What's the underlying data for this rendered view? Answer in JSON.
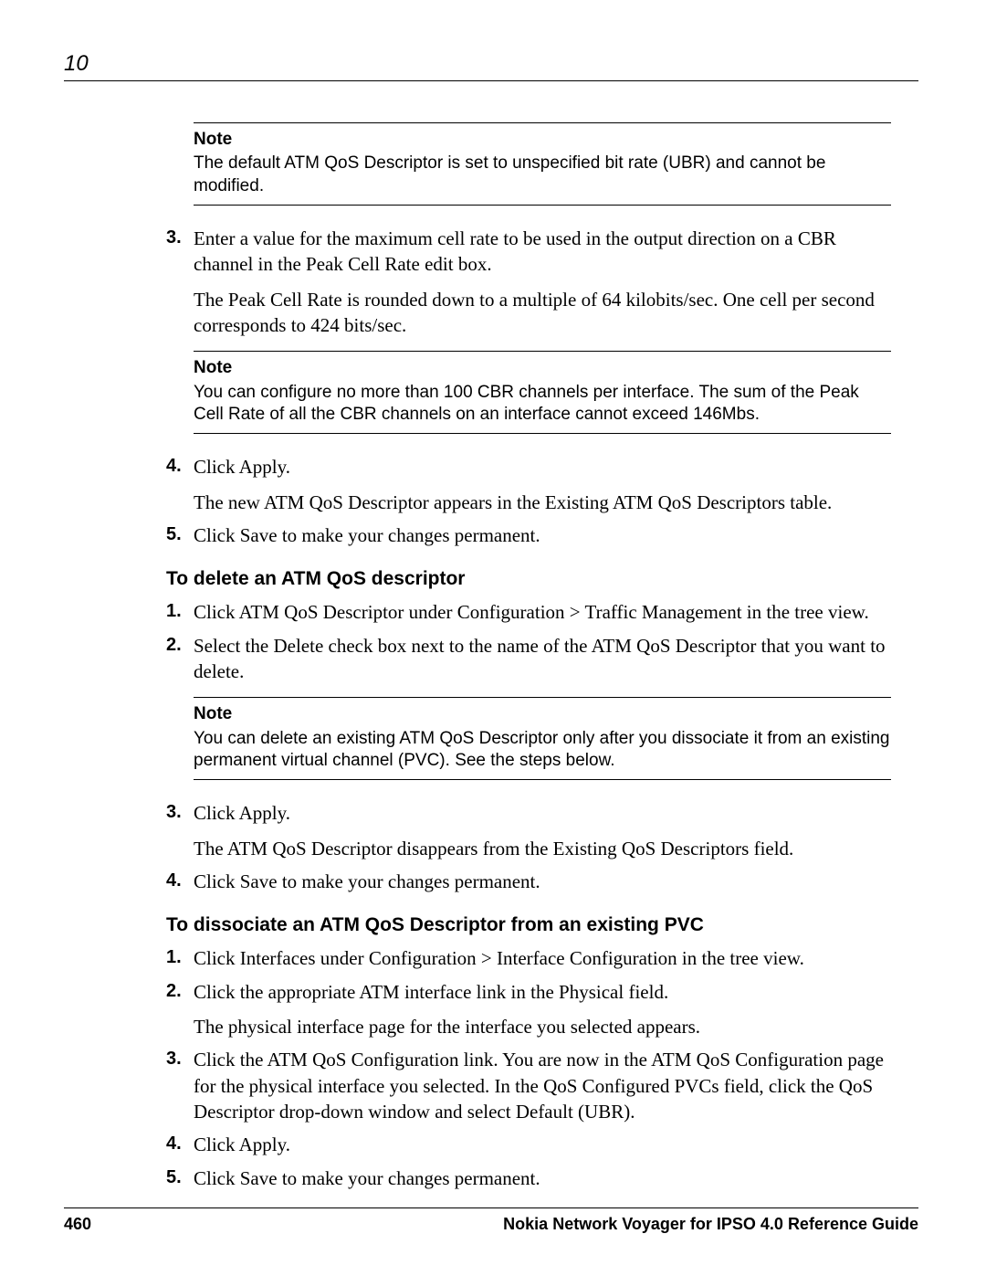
{
  "chapter_number": "10",
  "notes": {
    "note1": {
      "title": "Note",
      "body": "The default ATM QoS Descriptor is set to unspecified bit rate (UBR) and cannot be modified."
    },
    "note2": {
      "title": "Note",
      "body": "You can configure no more than 100 CBR channels per interface. The sum of the Peak Cell Rate of all the CBR channels on an interface cannot exceed 146Mbs."
    },
    "note3": {
      "title": "Note",
      "body": "You can delete an existing ATM QoS Descriptor only after you dissociate it from an existing permanent virtual channel (PVC). See the steps below."
    }
  },
  "steps_a": {
    "s3_num": "3.",
    "s3_p1": "Enter a value for the maximum cell rate to be used in the output direction on a CBR channel in the Peak Cell Rate edit box.",
    "s3_p2": "The Peak Cell Rate is rounded down to a multiple of 64 kilobits/sec. One cell per second corresponds to 424 bits/sec.",
    "s4_num": "4.",
    "s4_p1": "Click Apply.",
    "s4_p2": "The new ATM QoS Descriptor appears in the Existing ATM QoS Descriptors table.",
    "s5_num": "5.",
    "s5_p1": "Click Save to make your changes permanent."
  },
  "heading_b": "To delete an ATM QoS descriptor",
  "steps_b": {
    "s1_num": "1.",
    "s1_p1": "Click ATM QoS Descriptor under Configuration >  Traffic Management in the tree view.",
    "s2_num": "2.",
    "s2_p1": "Select the Delete check box next to the name of the ATM QoS Descriptor that you want to delete.",
    "s3_num": "3.",
    "s3_p1": "Click Apply.",
    "s3_p2": "The ATM QoS Descriptor disappears from the Existing QoS Descriptors field.",
    "s4_num": "4.",
    "s4_p1": "Click Save to make your changes permanent."
  },
  "heading_c": "To dissociate an ATM QoS Descriptor from an existing PVC",
  "steps_c": {
    "s1_num": "1.",
    "s1_p1": "Click Interfaces under Configuration >  Interface Configuration in the tree view.",
    "s2_num": "2.",
    "s2_p1": "Click the appropriate ATM interface link in the Physical field.",
    "s2_p2": "The physical interface page for the interface you selected appears.",
    "s3_num": "3.",
    "s3_p1": "Click the ATM QoS Configuration link. You are now in the ATM QoS Configuration page for the physical interface you selected. In the QoS Configured PVCs field, click the QoS Descriptor drop-down window and select Default (UBR).",
    "s4_num": "4.",
    "s4_p1": "Click Apply.",
    "s5_num": "5.",
    "s5_p1": "Click Save to make your changes permanent."
  },
  "footer": {
    "page": "460",
    "title": "Nokia Network Voyager for IPSO 4.0 Reference Guide"
  }
}
